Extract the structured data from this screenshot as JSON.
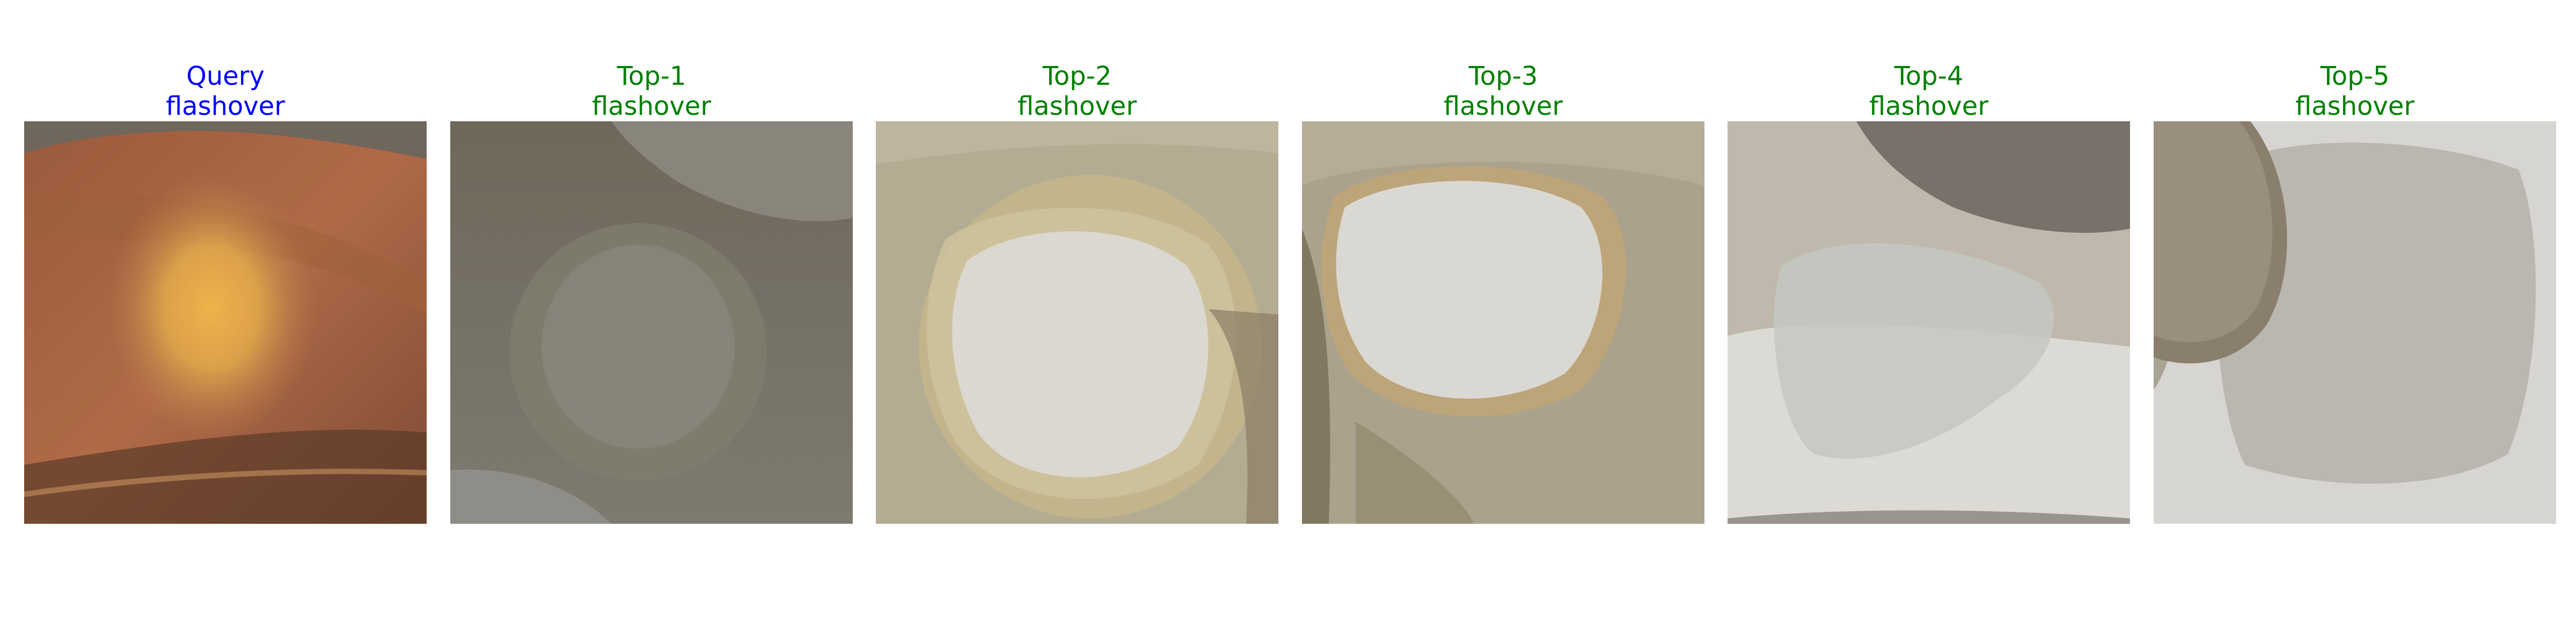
{
  "colors": {
    "query_text": "#0000ff",
    "match_text": "#008000"
  },
  "panels": [
    {
      "rank_label": "Query",
      "class_label": "flashover",
      "color": "#0000ff",
      "image": "orange-brown-insulator-closeup"
    },
    {
      "rank_label": "Top-1",
      "class_label": "flashover",
      "color": "#008000",
      "image": "gray-olive-insulator-closeup"
    },
    {
      "rank_label": "Top-2",
      "class_label": "flashover",
      "color": "#008000",
      "image": "white-glaze-burn-stain"
    },
    {
      "rank_label": "Top-3",
      "class_label": "flashover",
      "color": "#008000",
      "image": "white-glaze-burn-stain"
    },
    {
      "rank_label": "Top-4",
      "class_label": "flashover",
      "color": "#008000",
      "image": "white-disc-with-gray-cap"
    },
    {
      "rank_label": "Top-5",
      "class_label": "flashover",
      "color": "#008000",
      "image": "white-disc-with-gray-cap"
    }
  ]
}
